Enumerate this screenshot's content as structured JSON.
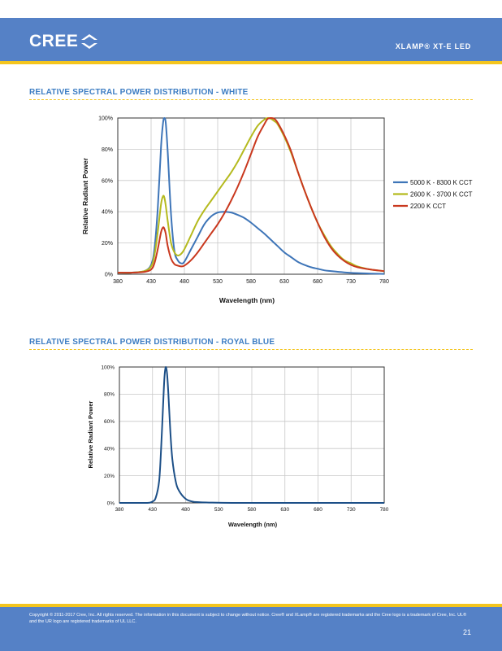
{
  "header": {
    "logo_text": "CREE",
    "logo_icon": "cree-chevron-logo",
    "product_title": "XLAMP® XT-E LED"
  },
  "sections": [
    {
      "title": "RELATIVE SPECTRAL POWER DISTRIBUTION - WHITE"
    },
    {
      "title": "RELATIVE SPECTRAL POWER DISTRIBUTION - ROYAL BLUE"
    }
  ],
  "chart_data": [
    {
      "type": "line",
      "xlabel": "Wavelength (nm)",
      "ylabel": "Relative Radiant Power",
      "xlim": [
        380,
        780
      ],
      "ylim": [
        0,
        100
      ],
      "x_ticks": [
        "380",
        "430",
        "480",
        "530",
        "580",
        "630",
        "680",
        "730",
        "780"
      ],
      "y_ticks": [
        "0%",
        "20%",
        "40%",
        "60%",
        "80%",
        "100%"
      ],
      "grid": true,
      "legend": "right",
      "series": [
        {
          "name": "5000 K - 8300 K CCT",
          "color": "#3e75b8",
          "x": [
            380,
            400,
            420,
            430,
            435,
            440,
            445,
            448,
            450,
            452,
            455,
            460,
            465,
            470,
            475,
            480,
            490,
            500,
            510,
            520,
            530,
            540,
            550,
            560,
            570,
            580,
            590,
            600,
            610,
            620,
            630,
            640,
            650,
            660,
            670,
            680,
            690,
            700,
            720,
            740,
            760,
            780
          ],
          "y": [
            1,
            1,
            2,
            6,
            16,
            42,
            82,
            97,
            100,
            97,
            78,
            38,
            15,
            9,
            7,
            8,
            16,
            24,
            32,
            37,
            39.5,
            40,
            39.5,
            38,
            36,
            33,
            29.5,
            26,
            22,
            18,
            14,
            11,
            8,
            6,
            4.5,
            3.5,
            2.5,
            2,
            1.2,
            0.7,
            0.4,
            0.2
          ]
        },
        {
          "name": "2600 K - 3700 K CCT",
          "color": "#b5ba1e",
          "x": [
            380,
            400,
            420,
            430,
            435,
            440,
            445,
            448,
            450,
            452,
            455,
            460,
            465,
            470,
            475,
            480,
            490,
            500,
            510,
            520,
            530,
            540,
            550,
            560,
            570,
            580,
            590,
            600,
            605,
            610,
            615,
            620,
            630,
            640,
            650,
            660,
            670,
            680,
            690,
            700,
            710,
            720,
            730,
            740,
            760,
            780
          ],
          "y": [
            1,
            1,
            2,
            5,
            12,
            27,
            45,
            50,
            49,
            44,
            34,
            20,
            14,
            12,
            13,
            16,
            25,
            34,
            41,
            47,
            53,
            59,
            65,
            72,
            80,
            88,
            95,
            99,
            100,
            99.5,
            98,
            96,
            88,
            78,
            66,
            54,
            43,
            33,
            25,
            18,
            13,
            9,
            7,
            5,
            3,
            2
          ]
        },
        {
          "name": "2200 K CCT",
          "color": "#c9381e",
          "x": [
            380,
            400,
            420,
            430,
            435,
            440,
            445,
            448,
            450,
            452,
            455,
            460,
            465,
            470,
            475,
            480,
            490,
            500,
            510,
            520,
            530,
            540,
            550,
            560,
            570,
            580,
            590,
            600,
            605,
            610,
            615,
            620,
            630,
            640,
            650,
            660,
            670,
            680,
            690,
            700,
            710,
            720,
            730,
            740,
            760,
            780
          ],
          "y": [
            1,
            1,
            1.5,
            3,
            7,
            16,
            27,
            30,
            29,
            26,
            18,
            10,
            6.5,
            5.5,
            5,
            5.5,
            9,
            14,
            20,
            26,
            32,
            39,
            47,
            56,
            66,
            77,
            88,
            96,
            99.5,
            100,
            99.5,
            97,
            89,
            79,
            66,
            54,
            43,
            33,
            24,
            17,
            12,
            8.5,
            6,
            4.5,
            3,
            2
          ]
        }
      ]
    },
    {
      "type": "line",
      "xlabel": "Wavelength (nm)",
      "ylabel": "Relative Radiant Power",
      "xlim": [
        380,
        780
      ],
      "ylim": [
        0,
        100
      ],
      "x_ticks": [
        "380",
        "430",
        "480",
        "530",
        "580",
        "630",
        "680",
        "730",
        "780"
      ],
      "y_ticks": [
        "0%",
        "20%",
        "40%",
        "60%",
        "80%",
        "100%"
      ],
      "grid": true,
      "series": [
        {
          "color": "#1c4f87",
          "x": [
            380,
            420,
            430,
            435,
            440,
            443,
            446,
            448,
            450,
            452,
            454,
            457,
            460,
            465,
            470,
            480,
            490,
            500,
            520,
            550,
            600,
            700,
            780
          ],
          "y": [
            0,
            0,
            1,
            4,
            16,
            40,
            72,
            92,
            100,
            95,
            80,
            52,
            32,
            16,
            9,
            3,
            1,
            0.5,
            0.2,
            0,
            0,
            0,
            0
          ]
        }
      ]
    }
  ],
  "footer": {
    "copyright": "Copyright © 2011-2017 Cree, Inc. All rights reserved. The information in this document is subject to change without notice. Cree® and XLamp® are registered trademarks and the Cree logo is a trademark of Cree, Inc. UL® and the UR logo are registered trademarks of UL LLC.",
    "page_number": "21"
  }
}
